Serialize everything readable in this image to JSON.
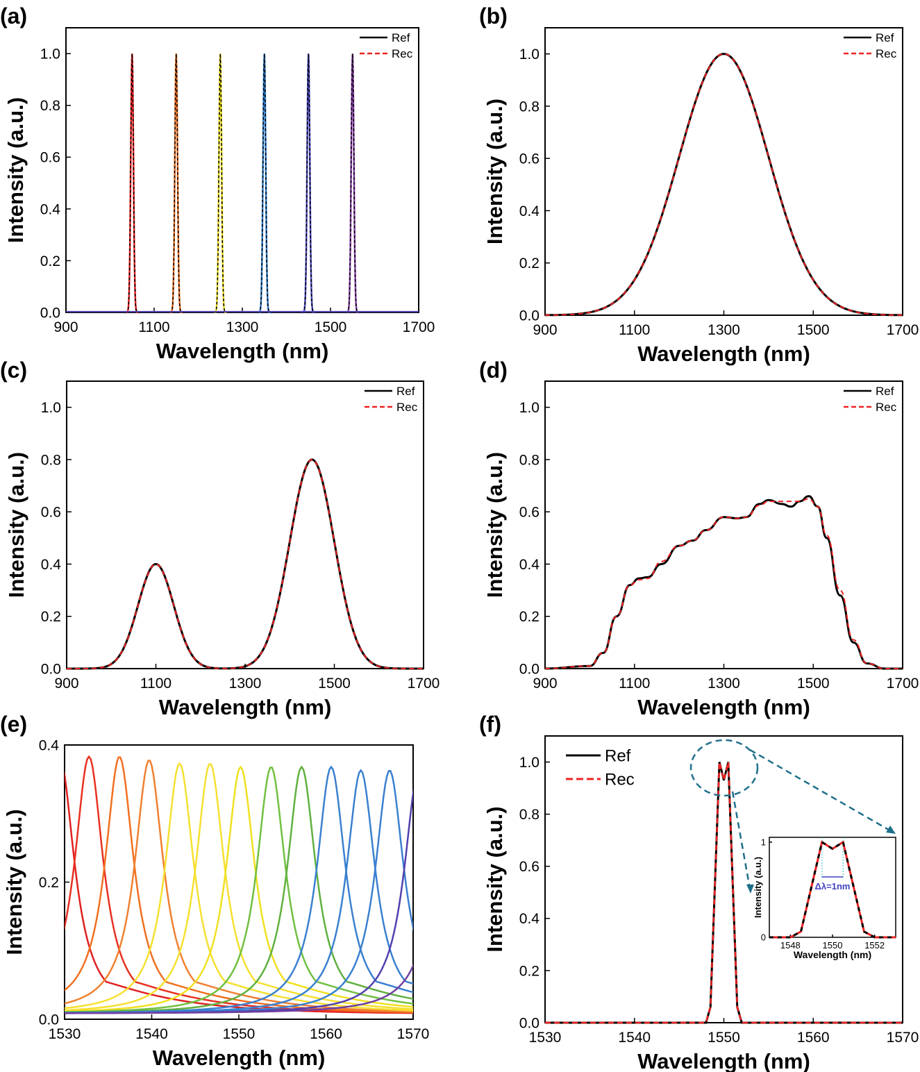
{
  "chart_data": [
    {
      "panel": "(a)",
      "type": "line",
      "xlabel": "Wavelength (nm)",
      "ylabel": "Intensity (a.u.)",
      "xlim": [
        900,
        1700
      ],
      "ylim": [
        0,
        1.1
      ],
      "xticks": [
        900,
        1100,
        1300,
        1500,
        1700
      ],
      "yticks": [
        0.0,
        0.2,
        0.4,
        0.6,
        0.8,
        1.0
      ],
      "legend": [
        "Ref",
        "Rec"
      ],
      "legend_placement": "top-right",
      "peaks": {
        "centers": [
          1050,
          1150,
          1250,
          1350,
          1450,
          1550
        ],
        "amplitude": 1.0,
        "sigma": 3,
        "colors": [
          "#ee2222",
          "#f07020",
          "#f0e020",
          "#3080d0",
          "#4b4bc0",
          "#8e44ad"
        ]
      }
    },
    {
      "panel": "(b)",
      "type": "line",
      "xlabel": "Wavelength (nm)",
      "ylabel": "Intensity (a.u.)",
      "xlim": [
        900,
        1700
      ],
      "ylim": [
        0,
        1.1
      ],
      "xticks": [
        900,
        1100,
        1300,
        1500,
        1700
      ],
      "yticks": [
        0.0,
        0.2,
        0.4,
        0.6,
        0.8,
        1.0
      ],
      "legend": [
        "Ref",
        "Rec"
      ],
      "legend_placement": "top-right",
      "gaussians": [
        {
          "center": 1300,
          "amplitude": 1.0,
          "sigma": 100
        }
      ]
    },
    {
      "panel": "(c)",
      "type": "line",
      "xlabel": "Wavelength (nm)",
      "ylabel": "Intensity (a.u.)",
      "xlim": [
        900,
        1700
      ],
      "ylim": [
        0,
        1.1
      ],
      "xticks": [
        900,
        1100,
        1300,
        1500,
        1700
      ],
      "yticks": [
        0.0,
        0.2,
        0.4,
        0.6,
        0.8,
        1.0
      ],
      "legend": [
        "Ref",
        "Rec"
      ],
      "legend_placement": "top-right",
      "gaussians": [
        {
          "center": 1100,
          "amplitude": 0.4,
          "sigma": 40
        },
        {
          "center": 1450,
          "amplitude": 0.8,
          "sigma": 50
        }
      ]
    },
    {
      "panel": "(d)",
      "type": "line",
      "xlabel": "Wavelength (nm)",
      "ylabel": "Intensity (a.u.)",
      "xlim": [
        900,
        1700
      ],
      "ylim": [
        0,
        1.1
      ],
      "xticks": [
        900,
        1100,
        1300,
        1500,
        1700
      ],
      "yticks": [
        0.0,
        0.2,
        0.4,
        0.6,
        0.8,
        1.0
      ],
      "legend": [
        "Ref",
        "Rec"
      ],
      "legend_placement": "top-right",
      "x": [
        900,
        1000,
        1030,
        1060,
        1090,
        1110,
        1130,
        1160,
        1200,
        1230,
        1260,
        1300,
        1330,
        1350,
        1380,
        1400,
        1430,
        1450,
        1470,
        1490,
        1510,
        1530,
        1560,
        1590,
        1620,
        1660,
        1700
      ],
      "ref": [
        0,
        0.01,
        0.06,
        0.2,
        0.32,
        0.345,
        0.35,
        0.4,
        0.47,
        0.49,
        0.53,
        0.58,
        0.575,
        0.58,
        0.63,
        0.645,
        0.63,
        0.62,
        0.64,
        0.66,
        0.62,
        0.5,
        0.28,
        0.1,
        0.02,
        0,
        0
      ],
      "rec": [
        0,
        0.01,
        0.06,
        0.2,
        0.32,
        0.34,
        0.345,
        0.41,
        0.47,
        0.49,
        0.53,
        0.58,
        0.575,
        0.58,
        0.625,
        0.64,
        0.64,
        0.64,
        0.64,
        0.65,
        0.62,
        0.51,
        0.3,
        0.11,
        0.02,
        0,
        0
      ]
    },
    {
      "panel": "(e)",
      "type": "line",
      "xlabel": "Wavelength (nm)",
      "ylabel": "Intensity (a.u.)",
      "xlim": [
        1530,
        1570
      ],
      "ylim": [
        0,
        0.4
      ],
      "xticks": [
        1530,
        1540,
        1550,
        1560,
        1570
      ],
      "yticks": [
        0.0,
        0.2,
        0.4
      ],
      "peaks": {
        "centers": [
          1529.5,
          1532.8,
          1536.3,
          1539.7,
          1543.2,
          1546.7,
          1550.2,
          1553.7,
          1557.2,
          1560.6,
          1564,
          1567.3,
          1570.6,
          1574
        ],
        "amplitudes": [
          0.37,
          0.375,
          0.375,
          0.37,
          0.365,
          0.365,
          0.36,
          0.36,
          0.36,
          0.36,
          0.355,
          0.355,
          0.35,
          0.35
        ],
        "fwhm": 4,
        "colors": [
          "#e02020",
          "#e83020",
          "#f07020",
          "#f08030",
          "#f5e030",
          "#f5e030",
          "#f0e020",
          "#70c040",
          "#60b040",
          "#3a80d0",
          "#3a80d0",
          "#3a80d0",
          "#5040b0",
          "#7040a0"
        ]
      }
    },
    {
      "panel": "(f)",
      "type": "line",
      "xlabel": "Wavelength (nm)",
      "ylabel": "Intensity (a.u.)",
      "xlim": [
        1530,
        1570
      ],
      "ylim": [
        0,
        1.1
      ],
      "xticks": [
        1530,
        1540,
        1550,
        1560,
        1570
      ],
      "yticks": [
        0.0,
        0.2,
        0.4,
        0.6,
        0.8,
        1.0
      ],
      "legend": [
        "Ref",
        "Rec"
      ],
      "legend_placement": "top-left",
      "x": [
        1530,
        1548,
        1548.5,
        1549.5,
        1550,
        1550.5,
        1551.5,
        1552,
        1570
      ],
      "y": [
        0,
        0,
        0.06,
        1,
        0.93,
        1,
        0.06,
        0,
        0
      ],
      "inset": {
        "xlabel": "Wavelength (nm)",
        "ylabel": "Intensity (a.u.)",
        "xlim": [
          1547,
          1553
        ],
        "ylim": [
          0,
          1.05
        ],
        "xticks": [
          1548,
          1550,
          1552
        ],
        "yticks": [
          0,
          1
        ],
        "x": [
          1547,
          1548,
          1548.5,
          1549.5,
          1550,
          1550.5,
          1551.5,
          1552,
          1553
        ],
        "y": [
          0,
          0,
          0.06,
          1,
          0.93,
          1,
          0.06,
          0,
          0
        ],
        "annotation": "Δλ=1nm"
      }
    }
  ],
  "colors": {
    "ref": "#000000",
    "rec": "#ee2222",
    "annotation": "#1f6f8b",
    "delta": "#4040c0"
  }
}
